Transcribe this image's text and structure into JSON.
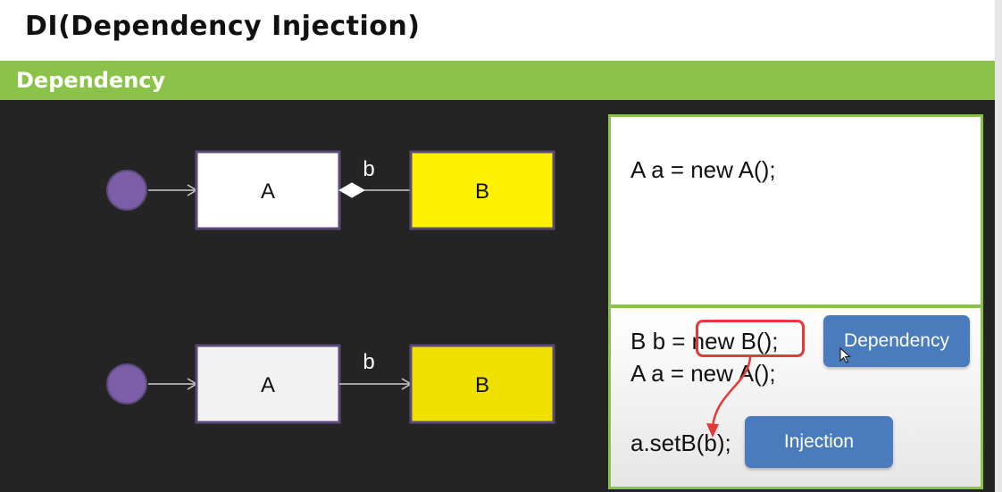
{
  "title": "DI(Dependency Injection)",
  "section": "Dependency",
  "diagram_top": {
    "class_a": "A",
    "class_b": "B",
    "assoc_label": "b",
    "assoc_kind": "composition",
    "colors": {
      "node": "#7b5ea7",
      "box_a": "#ffffff",
      "box_b": "#fff200",
      "border": "#5b4a78"
    }
  },
  "diagram_bottom": {
    "class_a": "A",
    "class_b": "B",
    "assoc_label": "b",
    "assoc_kind": "association",
    "colors": {
      "node": "#7b5ea7",
      "box_a": "#f2f2f2",
      "box_b": "#f0e000",
      "border": "#5b4a78"
    }
  },
  "code_top": {
    "lines": [
      "A a = new A();"
    ]
  },
  "code_bottom": {
    "lines": [
      "B b = new B();",
      "A a = new A();",
      "a.setB(b);"
    ]
  },
  "callouts": {
    "dependency": "Dependency",
    "injection": "Injection"
  },
  "colors": {
    "accent_green": "#8bc34a",
    "highlight_red": "#e53935",
    "callout_blue": "#4a7bbd",
    "background": "#242424"
  },
  "icons": [
    "mouse-pointer-icon"
  ]
}
